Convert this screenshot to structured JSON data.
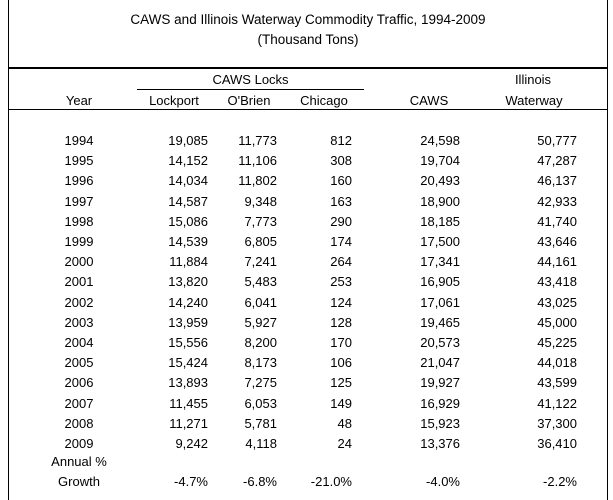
{
  "title": "CAWS and Illinois Waterway Commodity Traffic, 1994-2009",
  "subtitle": "(Thousand Tons)",
  "headers": {
    "year": "Year",
    "caws_locks": "CAWS Locks",
    "lockport": "Lockport",
    "obrien": "O'Brien",
    "chicago": "Chicago",
    "caws": "CAWS",
    "illinois_line1": "Illinois",
    "illinois_line2": "Waterway"
  },
  "rows": [
    {
      "year": "1994",
      "lockport": "19,085",
      "obrien": "11,773",
      "chicago": "812",
      "caws": "24,598",
      "illinois": "50,777"
    },
    {
      "year": "1995",
      "lockport": "14,152",
      "obrien": "11,106",
      "chicago": "308",
      "caws": "19,704",
      "illinois": "47,287"
    },
    {
      "year": "1996",
      "lockport": "14,034",
      "obrien": "11,802",
      "chicago": "160",
      "caws": "20,493",
      "illinois": "46,137"
    },
    {
      "year": "1997",
      "lockport": "14,587",
      "obrien": "9,348",
      "chicago": "163",
      "caws": "18,900",
      "illinois": "42,933"
    },
    {
      "year": "1998",
      "lockport": "15,086",
      "obrien": "7,773",
      "chicago": "290",
      "caws": "18,185",
      "illinois": "41,740"
    },
    {
      "year": "1999",
      "lockport": "14,539",
      "obrien": "6,805",
      "chicago": "174",
      "caws": "17,500",
      "illinois": "43,646"
    },
    {
      "year": "2000",
      "lockport": "11,884",
      "obrien": "7,241",
      "chicago": "264",
      "caws": "17,341",
      "illinois": "44,161"
    },
    {
      "year": "2001",
      "lockport": "13,820",
      "obrien": "5,483",
      "chicago": "253",
      "caws": "16,905",
      "illinois": "43,418"
    },
    {
      "year": "2002",
      "lockport": "14,240",
      "obrien": "6,041",
      "chicago": "124",
      "caws": "17,061",
      "illinois": "43,025"
    },
    {
      "year": "2003",
      "lockport": "13,959",
      "obrien": "5,927",
      "chicago": "128",
      "caws": "19,465",
      "illinois": "45,000"
    },
    {
      "year": "2004",
      "lockport": "15,556",
      "obrien": "8,200",
      "chicago": "170",
      "caws": "20,573",
      "illinois": "45,225"
    },
    {
      "year": "2005",
      "lockport": "15,424",
      "obrien": "8,173",
      "chicago": "106",
      "caws": "21,047",
      "illinois": "44,018"
    },
    {
      "year": "2006",
      "lockport": "13,893",
      "obrien": "7,275",
      "chicago": "125",
      "caws": "19,927",
      "illinois": "43,599"
    },
    {
      "year": "2007",
      "lockport": "11,455",
      "obrien": "6,053",
      "chicago": "149",
      "caws": "16,929",
      "illinois": "41,122"
    },
    {
      "year": "2008",
      "lockport": "11,271",
      "obrien": "5,781",
      "chicago": "48",
      "caws": "15,923",
      "illinois": "37,300"
    },
    {
      "year": "2009",
      "lockport": "9,242",
      "obrien": "4,118",
      "chicago": "24",
      "caws": "13,376",
      "illinois": "36,410"
    }
  ],
  "growth": {
    "label_line1": "Annual %",
    "label_line2": "Growth",
    "lockport": "-4.7%",
    "obrien": "-6.8%",
    "chicago": "-21.0%",
    "caws": "-4.0%",
    "illinois": "-2.2%"
  }
}
